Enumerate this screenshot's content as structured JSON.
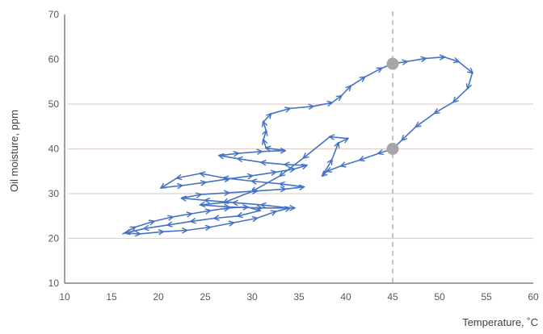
{
  "chart_data": {
    "type": "line",
    "xlabel": "Temperature, ˚C",
    "ylabel": "Oil moisture, ppm",
    "xlim": [
      10,
      60
    ],
    "ylim": [
      10,
      70
    ],
    "x_ticks": [
      "10",
      "15",
      "20",
      "25",
      "30",
      "35",
      "40",
      "45",
      "50",
      "55",
      "60"
    ],
    "y_ticks": [
      "10",
      "20",
      "30",
      "40",
      "50",
      "60",
      "70"
    ],
    "horizontal_gridlines": [
      20,
      30,
      40,
      50
    ],
    "reference_line": {
      "x": 45,
      "style": "dashed"
    },
    "series": [
      {
        "color": "#4472c4",
        "marker": "arrow",
        "points": [
          [
            16.2,
            21.0
          ],
          [
            17.5,
            22.5
          ],
          [
            19.5,
            23.8
          ],
          [
            21.5,
            24.8
          ],
          [
            23.5,
            25.5
          ],
          [
            25.5,
            26.2
          ],
          [
            27.5,
            26.8
          ],
          [
            29.5,
            27.0
          ],
          [
            30.8,
            26.2
          ],
          [
            28.5,
            25.0
          ],
          [
            26.0,
            24.5
          ],
          [
            23.5,
            23.8
          ],
          [
            21.0,
            23.0
          ],
          [
            18.5,
            22.2
          ],
          [
            16.5,
            21.2
          ],
          [
            18.0,
            21.0
          ],
          [
            20.5,
            21.5
          ],
          [
            23.0,
            21.8
          ],
          [
            25.5,
            22.5
          ],
          [
            28.0,
            23.5
          ],
          [
            30.5,
            24.5
          ],
          [
            32.5,
            26.0
          ],
          [
            34.0,
            26.8
          ],
          [
            31.0,
            27.5
          ],
          [
            28.0,
            28.0
          ],
          [
            25.0,
            28.5
          ],
          [
            22.5,
            29.0
          ],
          [
            24.5,
            29.8
          ],
          [
            27.5,
            30.2
          ],
          [
            30.5,
            30.6
          ],
          [
            33.5,
            31.0
          ],
          [
            35.5,
            31.5
          ],
          [
            33.0,
            32.2
          ],
          [
            30.0,
            32.8
          ],
          [
            27.0,
            33.5
          ],
          [
            24.5,
            34.5
          ],
          [
            22.0,
            33.5
          ],
          [
            20.3,
            31.3
          ],
          [
            22.5,
            31.8
          ],
          [
            25.0,
            32.5
          ],
          [
            27.5,
            33.3
          ],
          [
            30.0,
            34.0
          ],
          [
            32.5,
            34.8
          ],
          [
            34.5,
            35.5
          ],
          [
            35.8,
            36.3
          ],
          [
            33.5,
            36.5
          ],
          [
            31.0,
            37.0
          ],
          [
            28.5,
            37.8
          ],
          [
            26.5,
            38.5
          ],
          [
            28.5,
            39.0
          ],
          [
            31.0,
            39.4
          ],
          [
            33.5,
            39.6
          ],
          [
            31.5,
            40.2
          ],
          [
            31.2,
            42.0
          ],
          [
            31.5,
            44.0
          ],
          [
            31.2,
            46.0
          ],
          [
            32.0,
            47.8
          ],
          [
            34.0,
            49.0
          ],
          [
            36.5,
            49.5
          ],
          [
            38.5,
            50.3
          ],
          [
            39.5,
            51.8
          ],
          [
            40.5,
            54.0
          ],
          [
            42.0,
            56.0
          ],
          [
            43.8,
            58.0
          ],
          [
            45.0,
            59.0
          ],
          [
            46.5,
            59.5
          ],
          [
            48.5,
            60.2
          ],
          [
            50.5,
            60.5
          ],
          [
            52.0,
            59.5
          ],
          [
            53.5,
            57.0
          ],
          [
            53.0,
            53.5
          ],
          [
            51.5,
            50.5
          ],
          [
            49.5,
            48.0
          ],
          [
            47.5,
            45.0
          ],
          [
            46.0,
            42.0
          ],
          [
            45.0,
            40.0
          ],
          [
            43.5,
            39.0
          ],
          [
            41.5,
            37.5
          ],
          [
            39.5,
            36.2
          ],
          [
            38.0,
            35.0
          ],
          [
            37.5,
            34.0
          ],
          [
            38.5,
            37.5
          ],
          [
            39.2,
            41.3
          ],
          [
            40.2,
            42.3
          ],
          [
            38.3,
            42.7
          ],
          [
            35.5,
            38.0
          ],
          [
            33.0,
            34.0
          ],
          [
            30.0,
            30.5
          ],
          [
            27.0,
            28.0
          ],
          [
            24.5,
            27.5
          ],
          [
            27.5,
            27.0
          ],
          [
            31.0,
            26.8
          ],
          [
            34.5,
            26.8
          ]
        ]
      }
    ],
    "highlight_points": [
      [
        45,
        59
      ],
      [
        45,
        40
      ]
    ]
  }
}
